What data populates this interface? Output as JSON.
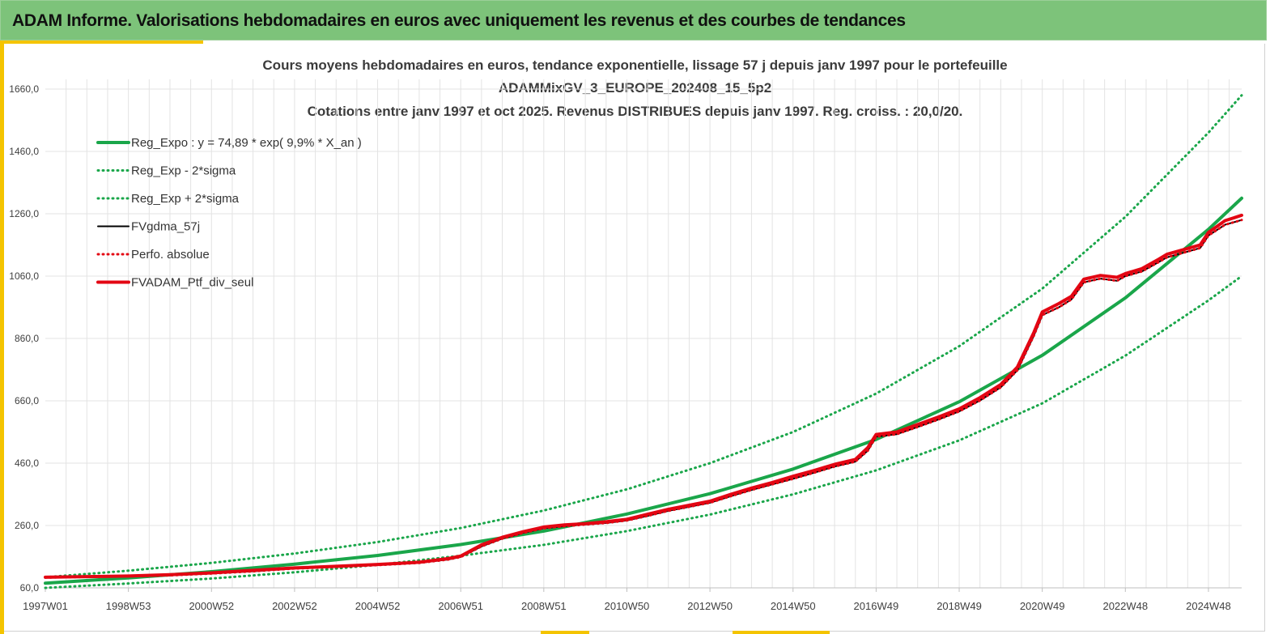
{
  "banner": {
    "title": "ADAM Informe. Valorisations hebdomadaires en euros avec uniquement les revenus et des courbes de tendances"
  },
  "colors": {
    "banner_bg": "#7dc37a",
    "accent": "#f4c400",
    "green_series": "#1aa64a",
    "black_series": "#000000",
    "red_series": "#e30613",
    "grid": "#e3e3e3"
  },
  "chart_data": {
    "type": "line",
    "title": [
      "Cours moyens hebdomadaires  en euros, tendance exponentielle, lissage 57 j depuis janv 1997 pour le portefeuille",
      "ADAMMixGV_3_EUROPE_202408_15_5p2",
      "Cotations  entre janv 1997 et oct 2025. Revenus DISTRIBUES depuis janv 1997. Reg. croiss. : 20,0/20."
    ],
    "x_unit": "year",
    "xlim": [
      1997.0,
      2025.8
    ],
    "ylim": [
      60,
      1660
    ],
    "y_ticks": [
      "60,0",
      "260,0",
      "460,0",
      "660,0",
      "860,0",
      "1060,0",
      "1260,0",
      "1460,0",
      "1660,0"
    ],
    "y_tick_values": [
      60,
      260,
      460,
      660,
      860,
      1060,
      1260,
      1460,
      1660
    ],
    "x_ticks": [
      {
        "label": "1997W01",
        "x": 1997.0
      },
      {
        "label": "1998W53",
        "x": 1999.0
      },
      {
        "label": "2000W52",
        "x": 2001.0
      },
      {
        "label": "2002W52",
        "x": 2003.0
      },
      {
        "label": "2004W52",
        "x": 2005.0
      },
      {
        "label": "2006W51",
        "x": 2007.0
      },
      {
        "label": "2008W51",
        "x": 2009.0
      },
      {
        "label": "2010W50",
        "x": 2011.0
      },
      {
        "label": "2012W50",
        "x": 2013.0
      },
      {
        "label": "2014W50",
        "x": 2015.0
      },
      {
        "label": "2016W49",
        "x": 2017.0
      },
      {
        "label": "2018W49",
        "x": 2019.0
      },
      {
        "label": "2020W49",
        "x": 2021.0
      },
      {
        "label": "2022W48",
        "x": 2023.0
      },
      {
        "label": "2024W48",
        "x": 2025.0
      }
    ],
    "grid": true,
    "legend_position": "top-left",
    "series": [
      {
        "name": "Reg_Expo : y = 74,89 * exp( 9,9% *  X_an )",
        "style": "solid-thick",
        "color": "#1aa64a",
        "x": [
          1997.0,
          1999.0,
          2001.0,
          2003.0,
          2005.0,
          2007.0,
          2009.0,
          2011.0,
          2013.0,
          2015.0,
          2017.0,
          2019.0,
          2021.0,
          2023.0,
          2025.0,
          2025.8
        ],
        "y": [
          75,
          92,
          112,
          136,
          164,
          199,
          242,
          297,
          362,
          441,
          536,
          657,
          806,
          990,
          1210,
          1310
        ]
      },
      {
        "name": "Reg_Exp - 2*sigma",
        "style": "dotted",
        "color": "#1aa64a",
        "x": [
          1997.0,
          1999.0,
          2001.0,
          2003.0,
          2005.0,
          2007.0,
          2009.0,
          2011.0,
          2013.0,
          2015.0,
          2017.0,
          2019.0,
          2021.0,
          2023.0,
          2025.0,
          2025.8
        ],
        "y": [
          60,
          74,
          90,
          110,
          134,
          163,
          198,
          242,
          295,
          360,
          437,
          533,
          652,
          805,
          982,
          1060
        ]
      },
      {
        "name": "Reg_Exp + 2*sigma",
        "style": "dotted",
        "color": "#1aa64a",
        "x": [
          1997.0,
          1999.0,
          2001.0,
          2003.0,
          2005.0,
          2007.0,
          2009.0,
          2011.0,
          2013.0,
          2015.0,
          2017.0,
          2019.0,
          2021.0,
          2023.0,
          2025.0,
          2025.8
        ],
        "y": [
          94,
          115,
          140,
          170,
          207,
          252,
          308,
          376,
          460,
          560,
          683,
          835,
          1020,
          1250,
          1520,
          1640
        ]
      },
      {
        "name": "FVgdma_57j",
        "style": "solid",
        "color": "#000000",
        "x": [
          1997.0,
          1998.0,
          1999.0,
          2000.0,
          2001.0,
          2002.0,
          2003.0,
          2004.0,
          2005.0,
          2006.0,
          2006.7,
          2007.0,
          2007.5,
          2008.0,
          2008.5,
          2009.0,
          2009.5,
          2010.0,
          2010.5,
          2011.0,
          2011.5,
          2012.0,
          2012.5,
          2013.0,
          2013.5,
          2014.0,
          2014.5,
          2015.0,
          2015.5,
          2016.0,
          2016.5,
          2016.8,
          2017.0,
          2017.5,
          2018.0,
          2018.5,
          2019.0,
          2019.5,
          2020.0,
          2020.4,
          2020.8,
          2021.0,
          2021.4,
          2021.7,
          2022.0,
          2022.4,
          2022.8,
          2023.0,
          2023.4,
          2023.8,
          2024.0,
          2024.4,
          2024.8,
          2025.0,
          2025.4,
          2025.8
        ],
        "y": [
          93,
          95,
          97,
          100,
          106,
          113,
          122,
          127,
          133,
          140,
          151,
          159,
          193,
          218,
          236,
          251,
          258,
          263,
          268,
          276,
          291,
          307,
          320,
          333,
          354,
          374,
          392,
          410,
          429,
          449,
          465,
          500,
          545,
          553,
          576,
          600,
          626,
          661,
          703,
          758,
          870,
          935,
          960,
          985,
          1040,
          1052,
          1045,
          1060,
          1075,
          1105,
          1120,
          1135,
          1150,
          1190,
          1225,
          1240
        ]
      },
      {
        "name": "Perfo. absolue",
        "style": "dotted",
        "color": "#e30613",
        "x": [
          1997.0,
          1998.0,
          1999.0,
          2000.0,
          2001.0,
          2002.0,
          2003.0,
          2004.0,
          2005.0,
          2006.0,
          2006.7,
          2007.0,
          2007.5,
          2008.0,
          2008.5,
          2009.0,
          2009.5,
          2010.0,
          2010.5,
          2011.0,
          2011.5,
          2012.0,
          2012.5,
          2013.0,
          2013.5,
          2014.0,
          2014.5,
          2015.0,
          2015.5,
          2016.0,
          2016.5,
          2016.8,
          2017.0,
          2017.5,
          2018.0,
          2018.5,
          2019.0,
          2019.5,
          2020.0,
          2020.4,
          2020.8,
          2021.0,
          2021.4,
          2021.7,
          2022.0,
          2022.4,
          2022.8,
          2023.0,
          2023.4,
          2023.8,
          2024.0,
          2024.4,
          2024.8,
          2025.0,
          2025.4,
          2025.8
        ],
        "y": [
          93,
          95,
          97,
          100,
          106,
          113,
          122,
          127,
          133,
          140,
          151,
          159,
          193,
          218,
          236,
          251,
          258,
          263,
          268,
          276,
          291,
          307,
          320,
          333,
          354,
          374,
          392,
          410,
          429,
          449,
          465,
          500,
          545,
          553,
          576,
          600,
          626,
          661,
          703,
          758,
          870,
          935,
          960,
          985,
          1040,
          1052,
          1045,
          1060,
          1075,
          1105,
          1120,
          1135,
          1150,
          1190,
          1225,
          1240
        ]
      },
      {
        "name": "FVADAM_Ptf_div_seul",
        "style": "solid-thick",
        "color": "#e30613",
        "x": [
          1997.0,
          1998.0,
          1999.0,
          2000.0,
          2001.0,
          2002.0,
          2003.0,
          2004.0,
          2005.0,
          2006.0,
          2006.7,
          2007.0,
          2007.5,
          2008.0,
          2008.5,
          2009.0,
          2009.5,
          2010.0,
          2010.5,
          2011.0,
          2011.5,
          2012.0,
          2012.5,
          2013.0,
          2013.5,
          2014.0,
          2014.5,
          2015.0,
          2015.5,
          2016.0,
          2016.5,
          2016.8,
          2017.0,
          2017.5,
          2018.0,
          2018.5,
          2019.0,
          2019.5,
          2020.0,
          2020.4,
          2020.8,
          2021.0,
          2021.4,
          2021.7,
          2022.0,
          2022.4,
          2022.8,
          2023.0,
          2023.4,
          2023.8,
          2024.0,
          2024.4,
          2024.8,
          2025.0,
          2025.4,
          2025.8
        ],
        "y": [
          94,
          96,
          98,
          102,
          108,
          116,
          124,
          129,
          135,
          142,
          154,
          162,
          198,
          222,
          240,
          255,
          262,
          266,
          272,
          280,
          296,
          312,
          325,
          338,
          360,
          380,
          398,
          418,
          436,
          456,
          472,
          510,
          552,
          560,
          584,
          608,
          634,
          670,
          712,
          768,
          880,
          945,
          972,
          995,
          1050,
          1062,
          1056,
          1068,
          1084,
          1114,
          1130,
          1145,
          1160,
          1200,
          1238,
          1255
        ]
      }
    ]
  }
}
